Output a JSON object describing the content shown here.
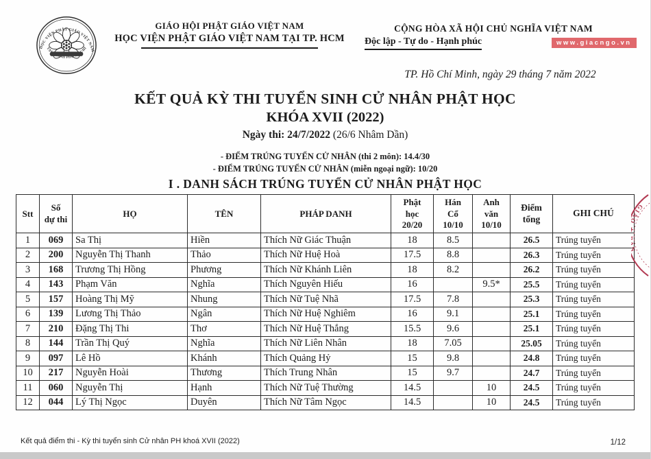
{
  "header": {
    "org_line1": "GIÁO HỘI PHẬT GIÁO VIỆT NAM",
    "org_line2": "HỌC VIỆN PHẬT GIÁO VIỆT NAM TẠI TP. HCM",
    "national_line1": "CỘNG HÒA XÃ HỘI CHỦ NGHĨA VIỆT NAM",
    "national_line2": "Độc lập - Tự do - Hạnh phúc",
    "watermark": "www.giacngo.vn",
    "place_date": "TP. Hồ Chí Minh, ngày 29 tháng 7 năm 2022",
    "logo_ring_top": "HỌC VIỆN PHẬT GIÁO VIỆT NAM",
    "logo_ring_bottom": "TẠI THÀNH PHỐ HỒ CHÍ MINH"
  },
  "title": {
    "line1": "KẾT QUẢ KỲ THI TUYỂN SINH CỬ NHÂN PHẬT HỌC",
    "line2": "KHÓA XVII (2022)",
    "exam_date_bold": "Ngày thi: 24/7/2022",
    "exam_date_rest": " (26/6 Nhâm Dần)"
  },
  "notes": {
    "line1": "- ĐIỂM TRÚNG TUYỂN CỬ NHÂN (thi 2 môn): 14.4/30",
    "line2": "- ĐIỂM TRÚNG TUYỂN CỬ NHÂN (miễn ngoại ngữ): 10/20"
  },
  "section_title": "I . DANH SÁCH TRÚNG TUYỂN CỬ NHÂN PHẬT HỌC",
  "table": {
    "columns": [
      "Stt",
      "Số\ndự thi",
      "HỌ",
      "TÊN",
      "PHÁP DANH",
      "Phật\nhọc\n20/20",
      "Hán\nCổ\n10/10",
      "Anh\nvăn\n10/10",
      "Điểm\ntổng",
      "GHI CHÚ"
    ],
    "rows": [
      [
        "1",
        "069",
        "Sa Thị",
        "Hiền",
        "Thích Nữ Giác Thuận",
        "18",
        "8.5",
        "",
        "26.5",
        "Trúng tuyển"
      ],
      [
        "2",
        "200",
        "Nguyễn Thị Thanh",
        "Thảo",
        "Thích Nữ Huệ Hoà",
        "17.5",
        "8.8",
        "",
        "26.3",
        "Trúng tuyển"
      ],
      [
        "3",
        "168",
        "Trương Thị Hồng",
        "Phương",
        "Thích Nữ Khánh Liên",
        "18",
        "8.2",
        "",
        "26.2",
        "Trúng tuyển"
      ],
      [
        "4",
        "143",
        "Phạm Văn",
        "Nghĩa",
        "Thích Nguyên Hiếu",
        "16",
        "",
        "9.5*",
        "25.5",
        "Trúng tuyển"
      ],
      [
        "5",
        "157",
        "Hoàng Thị Mỹ",
        "Nhung",
        "Thích Nữ Tuệ Nhã",
        "17.5",
        "7.8",
        "",
        "25.3",
        "Trúng tuyển"
      ],
      [
        "6",
        "139",
        "Lương Thị Thảo",
        "Ngân",
        "Thích Nữ Huệ Nghiêm",
        "16",
        "9.1",
        "",
        "25.1",
        "Trúng tuyển"
      ],
      [
        "7",
        "210",
        "Đặng Thị Thi",
        "Thơ",
        "Thích Nữ Huệ Thắng",
        "15.5",
        "9.6",
        "",
        "25.1",
        "Trúng tuyển"
      ],
      [
        "8",
        "144",
        "Trần Thị Quý",
        "Nghĩa",
        "Thích Nữ Liên Nhân",
        "18",
        "7.05",
        "",
        "25.05",
        "Trúng tuyển"
      ],
      [
        "9",
        "097",
        "Lê Hồ",
        "Khánh",
        "Thích Quảng Hỷ",
        "15",
        "9.8",
        "",
        "24.8",
        "Trúng tuyển"
      ],
      [
        "10",
        "217",
        "Nguyễn Hoài",
        "Thương",
        "Thích Trung Nhân",
        "15",
        "9.7",
        "",
        "24.7",
        "Trúng tuyển"
      ],
      [
        "11",
        "060",
        "Nguyễn Thị",
        "Hạnh",
        "Thích Nữ Tuệ Thường",
        "14.5",
        "",
        "10",
        "24.5",
        "Trúng tuyển"
      ],
      [
        "12",
        "044",
        "Lý Thị Ngọc",
        "Duyên",
        "Thích Nữ Tâm Ngọc",
        "14.5",
        "",
        "10",
        "24.5",
        "Trúng tuyển"
      ]
    ]
  },
  "stamp_text": "GIÁO ★ BAN",
  "footer": {
    "left": "Kết quả điểm thi - Kỳ thi tuyển sinh Cử nhân PH khoá XVII (2022)",
    "page": "1/12"
  },
  "colors": {
    "accent_red": "#e0686c",
    "stamp_red": "#b23a52",
    "ink": "#1c1c1c"
  }
}
